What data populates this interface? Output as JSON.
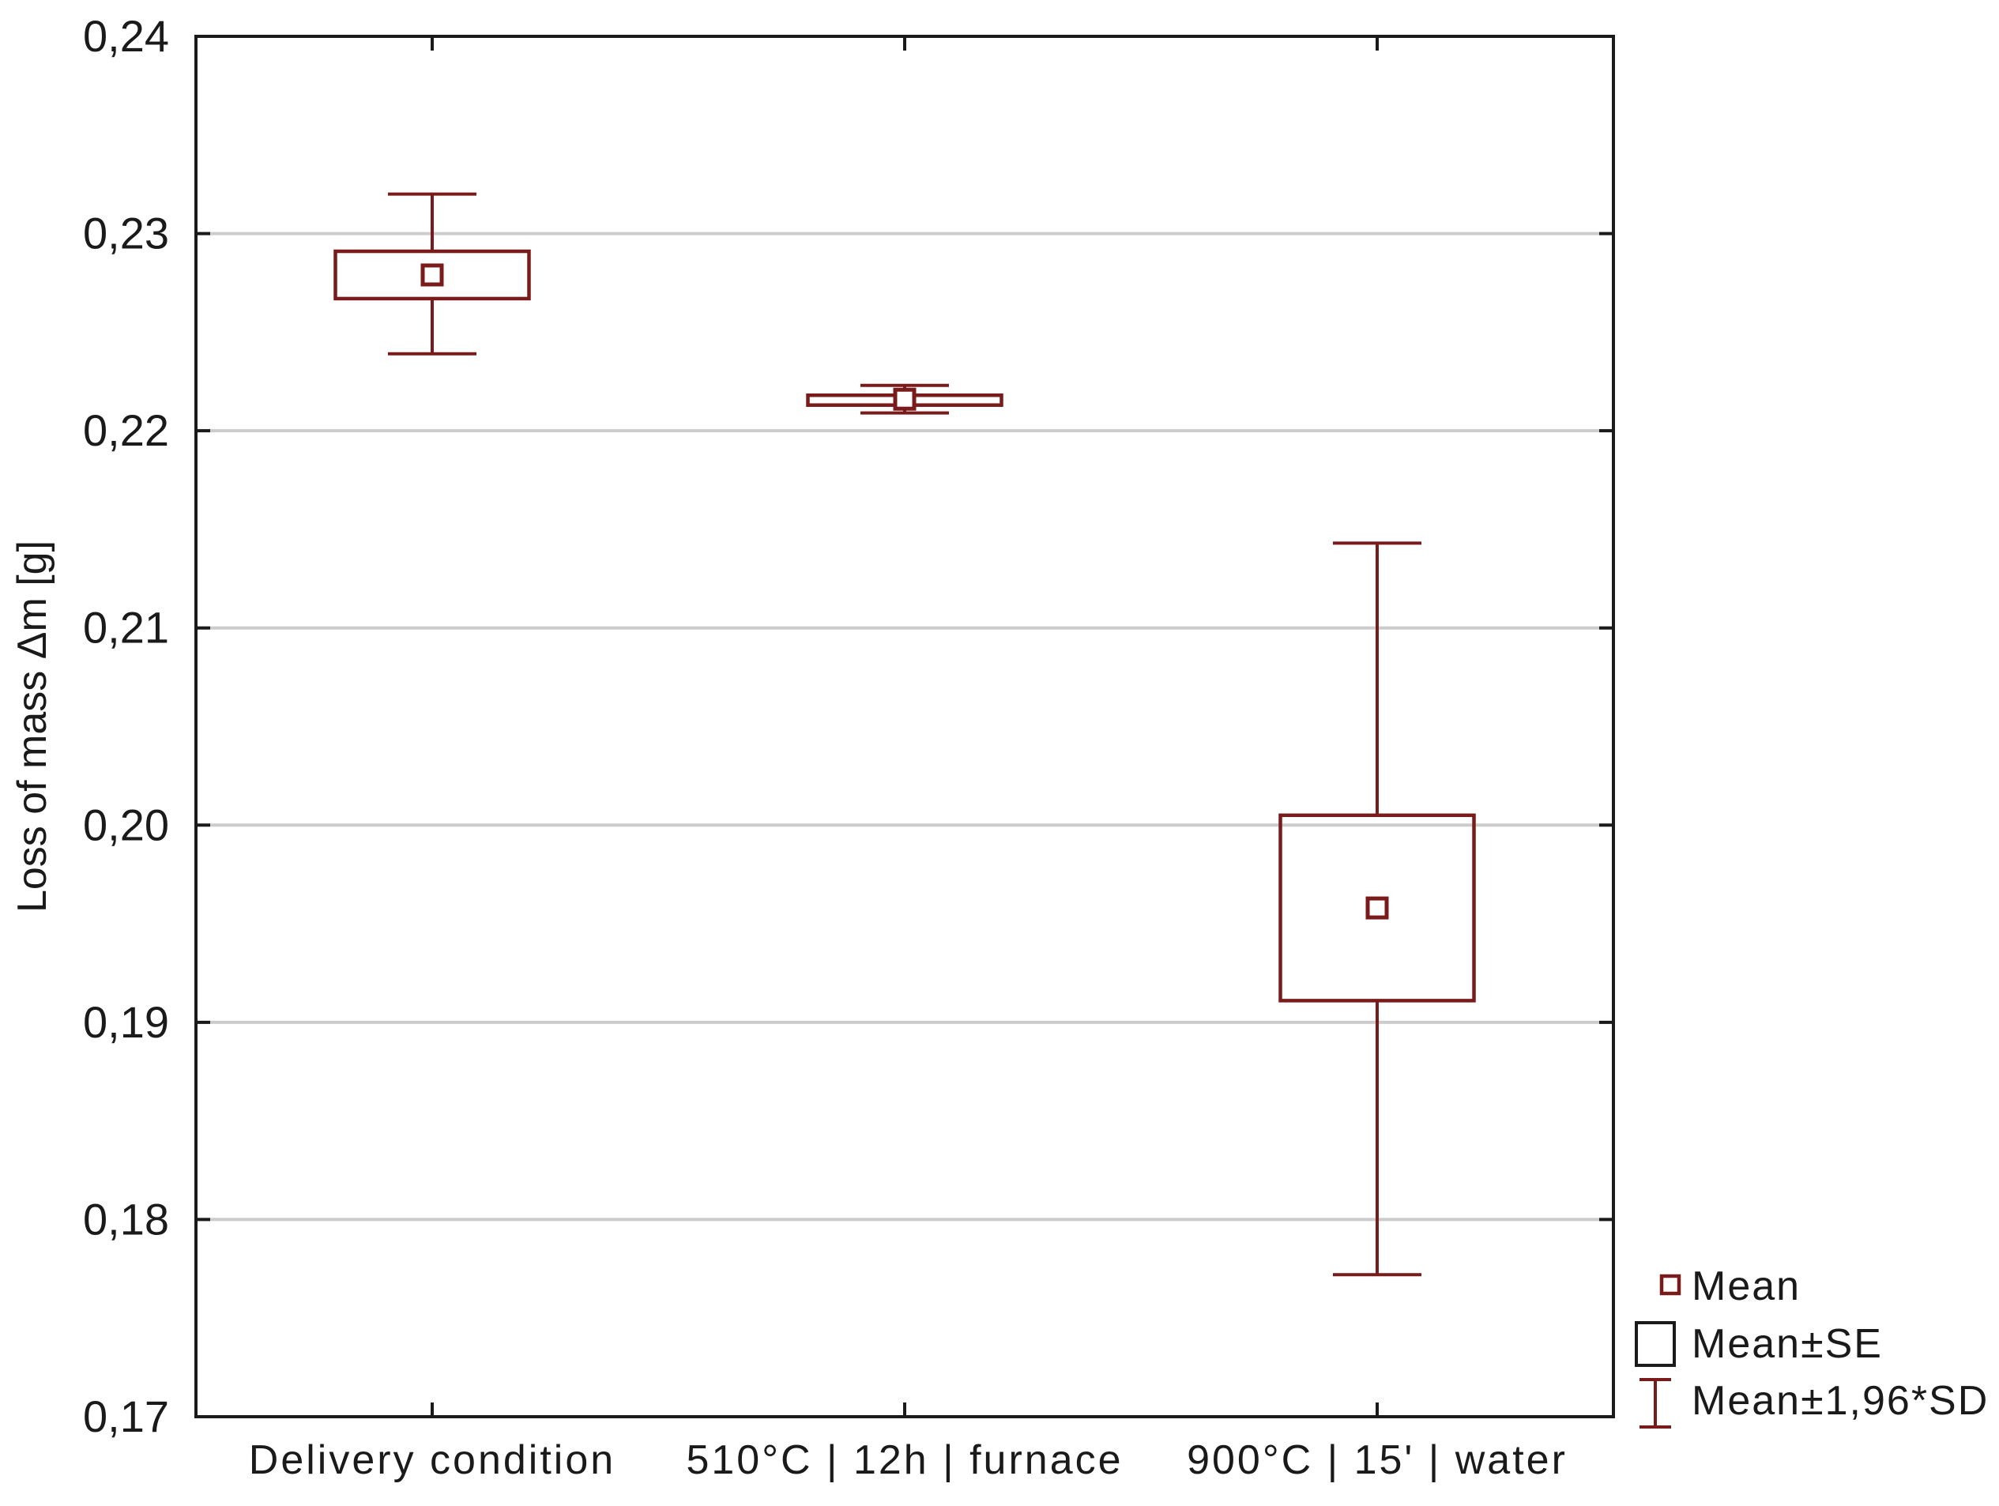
{
  "chart_data": {
    "type": "box",
    "ylabel": "Loss of mass Δm [g]",
    "xlabel": "",
    "ylim": [
      0.17,
      0.24
    ],
    "yticks": [
      {
        "value": 0.17,
        "label": "0,17"
      },
      {
        "value": 0.18,
        "label": "0,18"
      },
      {
        "value": 0.19,
        "label": "0,19"
      },
      {
        "value": 0.2,
        "label": "0,20"
      },
      {
        "value": 0.21,
        "label": "0,21"
      },
      {
        "value": 0.22,
        "label": "0,22"
      },
      {
        "value": 0.23,
        "label": "0,23"
      },
      {
        "value": 0.24,
        "label": "0,24"
      }
    ],
    "grid": true,
    "categories": [
      "Delivery condition",
      "510°C | 12h | furnace",
      "900°C | 15' | water"
    ],
    "boxes": [
      {
        "category": "Delivery condition",
        "mean": 0.2279,
        "se_low": 0.2267,
        "se_high": 0.2291,
        "sd_low": 0.2239,
        "sd_high": 0.232
      },
      {
        "category": "510°C | 12h | furnace",
        "mean": 0.2216,
        "se_low": 0.2213,
        "se_high": 0.2218,
        "sd_low": 0.2209,
        "sd_high": 0.2223
      },
      {
        "category": "900°C | 15' | water",
        "mean": 0.1958,
        "se_low": 0.1911,
        "se_high": 0.2005,
        "sd_low": 0.1772,
        "sd_high": 0.2143
      }
    ],
    "legend": {
      "position": "bottom-right",
      "items": [
        {
          "key": "mean",
          "label": "Mean"
        },
        {
          "key": "se",
          "label": "Mean±SE"
        },
        {
          "key": "sd",
          "label": "Mean±1,96*SD"
        }
      ]
    },
    "colors": {
      "marks": "#7a1b1b",
      "axis": "#1a1a1a",
      "grid": "#cccccc"
    }
  }
}
